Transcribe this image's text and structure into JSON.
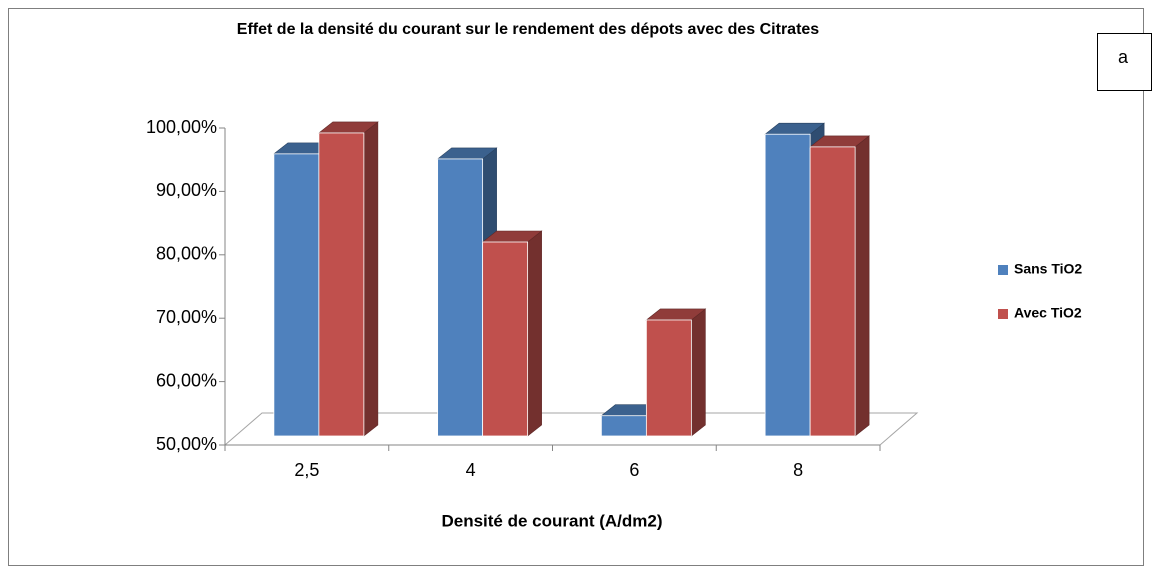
{
  "chart_data": {
    "type": "bar3d",
    "title": "Effet de la densité du courant sur le rendement  des dépots  avec des Citrates",
    "annotation": "a",
    "x_label": "Densité de courant (A/dm2)",
    "categories": [
      "2,5",
      "4",
      "6",
      "8"
    ],
    "series": [
      {
        "name": "Sans TiO2",
        "color": "#4f81bd",
        "values": [
          94.5,
          93.7,
          53.2,
          97.6
        ]
      },
      {
        "name": "Avec TiO2",
        "color": "#c0504d",
        "values": [
          97.8,
          80.6,
          68.3,
          95.6
        ]
      }
    ],
    "ylim": [
      50,
      100
    ],
    "yticks": [
      {
        "value": 50,
        "label": "50,00%"
      },
      {
        "value": 60,
        "label": "60,00%"
      },
      {
        "value": 70,
        "label": "70,00%"
      },
      {
        "value": 80,
        "label": "80,00%"
      },
      {
        "value": 90,
        "label": "90,00%"
      },
      {
        "value": 100,
        "label": "100,00%"
      }
    ],
    "legend": "right"
  }
}
